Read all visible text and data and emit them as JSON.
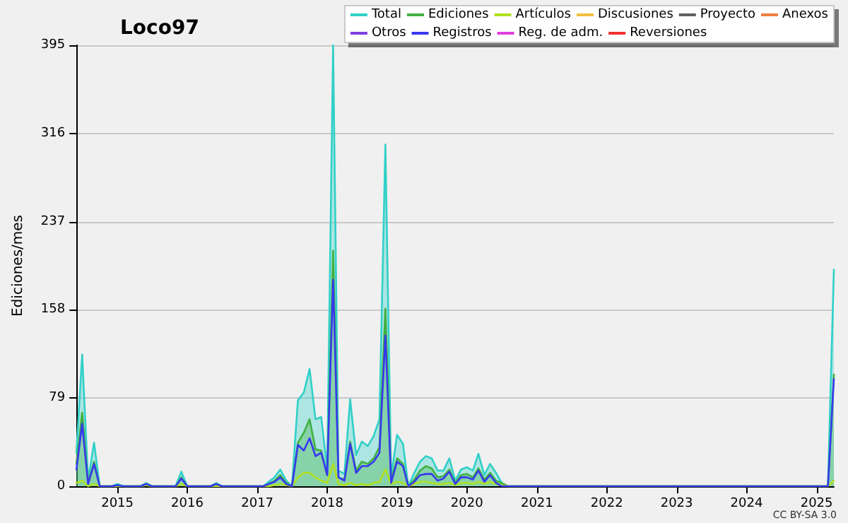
{
  "chart_data": {
    "type": "line",
    "title": "Loco97",
    "ylabel": "Ediciones/mes",
    "annotations": [
      "CC BY-SA 3.0"
    ],
    "x": [
      "2014-06",
      "2014-07",
      "2014-08",
      "2014-09",
      "2014-10",
      "2014-12",
      "2015-01",
      "2015-02",
      "2015-05",
      "2015-06",
      "2015-07",
      "2015-11",
      "2015-12",
      "2016-01",
      "2016-05",
      "2016-06",
      "2016-07",
      "2017-02",
      "2017-03",
      "2017-04",
      "2017-05",
      "2017-06",
      "2017-07",
      "2017-08",
      "2017-09",
      "2017-10",
      "2017-11",
      "2017-12",
      "2018-01",
      "2018-02",
      "2018-03",
      "2018-04",
      "2018-05",
      "2018-06",
      "2018-07",
      "2018-08",
      "2018-09",
      "2018-10",
      "2018-11",
      "2018-12",
      "2019-01",
      "2019-02",
      "2019-03",
      "2019-04",
      "2019-05",
      "2019-06",
      "2019-07",
      "2019-08",
      "2019-09",
      "2019-10",
      "2019-11",
      "2019-12",
      "2020-01",
      "2020-02",
      "2020-03",
      "2020-04",
      "2020-05",
      "2020-06",
      "2020-07",
      "2020-08",
      "2025-03",
      "2025-04"
    ],
    "series": [
      {
        "name": "Total",
        "type": "area",
        "color": "#30d0c8",
        "values": [
          30,
          118,
          5,
          39,
          0,
          0,
          2,
          0,
          0,
          3,
          0,
          0,
          13,
          0,
          0,
          3,
          0,
          0,
          4,
          8,
          15,
          5,
          0,
          77,
          84,
          105,
          60,
          62,
          15,
          395,
          14,
          11,
          78,
          28,
          40,
          36,
          45,
          60,
          306,
          8,
          46,
          38,
          0,
          12,
          22,
          27,
          25,
          14,
          14,
          25,
          5,
          15,
          17,
          14,
          29,
          10,
          20,
          12,
          3,
          0,
          0,
          194
        ]
      },
      {
        "name": "Ediciones",
        "type": "area",
        "color": "#40b040",
        "values": [
          20,
          66,
          3,
          22,
          0,
          0,
          1,
          0,
          0,
          2,
          0,
          0,
          8,
          0,
          0,
          2,
          0,
          0,
          2,
          5,
          10,
          3,
          0,
          39,
          48,
          60,
          33,
          32,
          10,
          211,
          8,
          6,
          40,
          14,
          22,
          20,
          25,
          35,
          159,
          5,
          25,
          20,
          0,
          6,
          14,
          18,
          16,
          8,
          9,
          15,
          3,
          10,
          11,
          8,
          16,
          6,
          12,
          5,
          3,
          0,
          0,
          100
        ]
      },
      {
        "name": "Artículos",
        "color": "#b0e020",
        "values": [
          3,
          5,
          0,
          2,
          0,
          0,
          0,
          0,
          0,
          1,
          0,
          0,
          2,
          0,
          0,
          0,
          0,
          0,
          0,
          1,
          2,
          1,
          0,
          8,
          12,
          12,
          8,
          5,
          3,
          20,
          2,
          1,
          3,
          1,
          2,
          1,
          3,
          4,
          15,
          2,
          4,
          3,
          0,
          2,
          4,
          4,
          3,
          2,
          2,
          3,
          1,
          3,
          3,
          2,
          4,
          2,
          4,
          2,
          1,
          0,
          0,
          5
        ]
      },
      {
        "name": "Discusiones",
        "color": "#f0c040",
        "values": [
          null,
          null,
          null,
          null,
          null,
          null,
          null,
          null,
          null,
          null,
          null,
          null,
          null,
          null,
          null,
          null,
          null,
          null,
          null,
          null,
          null,
          null,
          null,
          null,
          null,
          null,
          null,
          null,
          null,
          null,
          null,
          null,
          null,
          null,
          null,
          null,
          null,
          null,
          null,
          null,
          null,
          null,
          null,
          null,
          null,
          null,
          null,
          null,
          null,
          null,
          null,
          null,
          null,
          null,
          null,
          null,
          null,
          null,
          null,
          null,
          null,
          null
        ]
      },
      {
        "name": "Proyecto",
        "color": "#606060",
        "values": [
          null,
          null,
          null,
          null,
          null,
          null,
          null,
          null,
          null,
          null,
          null,
          null,
          null,
          null,
          null,
          null,
          null,
          null,
          null,
          null,
          null,
          null,
          null,
          null,
          null,
          null,
          null,
          null,
          null,
          null,
          null,
          null,
          null,
          null,
          null,
          null,
          null,
          null,
          null,
          null,
          null,
          null,
          null,
          null,
          null,
          null,
          null,
          null,
          null,
          null,
          null,
          null,
          null,
          null,
          null,
          null,
          null,
          null,
          null,
          null,
          null,
          null
        ]
      },
      {
        "name": "Anexos",
        "color": "#f08040",
        "values": [
          null,
          null,
          null,
          null,
          null,
          null,
          null,
          null,
          null,
          null,
          null,
          null,
          null,
          null,
          null,
          null,
          null,
          null,
          null,
          null,
          null,
          null,
          null,
          null,
          null,
          null,
          null,
          null,
          null,
          null,
          null,
          null,
          null,
          null,
          null,
          null,
          null,
          null,
          null,
          null,
          null,
          null,
          null,
          null,
          null,
          null,
          null,
          null,
          null,
          null,
          null,
          null,
          null,
          null,
          null,
          null,
          null,
          null,
          null,
          null,
          null,
          null
        ]
      },
      {
        "name": "Otros",
        "color": "#8040e0",
        "values": [
          null,
          null,
          null,
          null,
          null,
          null,
          null,
          null,
          null,
          null,
          null,
          null,
          null,
          null,
          null,
          null,
          null,
          null,
          null,
          null,
          null,
          null,
          null,
          null,
          null,
          null,
          null,
          null,
          null,
          null,
          null,
          null,
          null,
          null,
          null,
          null,
          null,
          null,
          null,
          null,
          null,
          null,
          null,
          null,
          null,
          null,
          null,
          null,
          null,
          null,
          null,
          null,
          null,
          null,
          null,
          null,
          null,
          null,
          null,
          null,
          null,
          null
        ]
      },
      {
        "name": "Registros",
        "color": "#3838f0",
        "values": [
          15,
          56,
          2,
          20,
          0,
          0,
          1,
          0,
          0,
          2,
          0,
          0,
          7,
          0,
          0,
          2,
          0,
          0,
          2,
          4,
          8,
          2,
          0,
          37,
          32,
          43,
          27,
          30,
          10,
          185,
          8,
          5,
          38,
          12,
          18,
          18,
          22,
          30,
          135,
          3,
          22,
          18,
          0,
          4,
          10,
          11,
          11,
          5,
          7,
          13,
          2,
          8,
          8,
          6,
          14,
          4,
          10,
          3,
          0,
          0,
          0,
          96
        ]
      },
      {
        "name": "Reg. de adm.",
        "color": "#e040e0",
        "values": [
          null,
          null,
          null,
          null,
          null,
          null,
          null,
          null,
          null,
          null,
          null,
          null,
          null,
          null,
          null,
          null,
          null,
          null,
          null,
          null,
          null,
          null,
          null,
          null,
          null,
          null,
          null,
          null,
          null,
          null,
          null,
          null,
          null,
          null,
          null,
          null,
          null,
          null,
          null,
          null,
          null,
          null,
          null,
          null,
          null,
          null,
          null,
          null,
          null,
          null,
          null,
          null,
          null,
          null,
          null,
          null,
          null,
          null,
          null,
          null,
          null,
          null
        ]
      },
      {
        "name": "Reversiones",
        "color": "#f03030",
        "values": [
          null,
          null,
          null,
          null,
          null,
          null,
          null,
          null,
          null,
          null,
          null,
          null,
          null,
          null,
          null,
          null,
          null,
          null,
          null,
          null,
          null,
          null,
          null,
          null,
          null,
          null,
          null,
          null,
          null,
          null,
          null,
          null,
          null,
          null,
          null,
          null,
          null,
          null,
          null,
          null,
          null,
          null,
          null,
          null,
          null,
          null,
          null,
          null,
          null,
          null,
          null,
          null,
          null,
          null,
          null,
          null,
          null,
          null,
          null,
          null,
          null,
          null
        ]
      }
    ],
    "xlim": [
      "2014-06",
      "2025-04"
    ],
    "xticks": [
      "2015",
      "2016",
      "2017",
      "2018",
      "2019",
      "2020",
      "2021",
      "2022",
      "2023",
      "2024",
      "2025"
    ],
    "ylim": [
      0,
      395
    ],
    "yticks": [
      0,
      79,
      158,
      237,
      316,
      395
    ],
    "grid": "y",
    "legend": "top right"
  }
}
